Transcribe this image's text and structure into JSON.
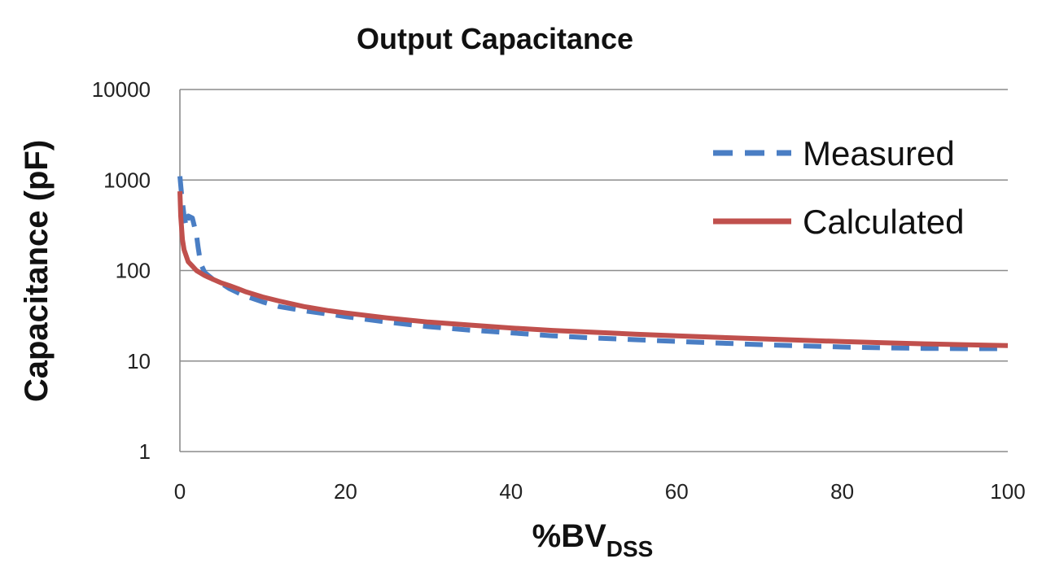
{
  "chart_data": {
    "type": "line",
    "title": "Output Capacitance",
    "xlabel": "%BV",
    "xlabel_subscript": "DSS",
    "ylabel": "Capacitance (pF)",
    "xlim": [
      0,
      100
    ],
    "ylim": [
      1,
      10000
    ],
    "yscale": "log",
    "grid": "horizontal",
    "legend_position": "top-right",
    "x_ticks": [
      "0",
      "20",
      "40",
      "60",
      "80",
      "100"
    ],
    "y_ticks": [
      "1",
      "10",
      "100",
      "1000",
      "10000"
    ],
    "series": [
      {
        "name": "Measured",
        "style": "dashed",
        "color": "#4a7ec4",
        "x": [
          0,
          0.2,
          0.5,
          0.8,
          1.0,
          1.5,
          2.0,
          2.2,
          2.5,
          3,
          4,
          5,
          6,
          7,
          8,
          10,
          12,
          15,
          18,
          20,
          25,
          30,
          35,
          40,
          45,
          50,
          55,
          60,
          65,
          70,
          75,
          80,
          85,
          90,
          95,
          100
        ],
        "y": [
          1100,
          700,
          400,
          300,
          400,
          380,
          250,
          180,
          120,
          95,
          80,
          72,
          63,
          57,
          52,
          45,
          40,
          36,
          33,
          31,
          27,
          24,
          22,
          20.5,
          19,
          18,
          17.2,
          16.5,
          15.8,
          15.2,
          14.7,
          14.3,
          14,
          13.8,
          13.7,
          13.7
        ]
      },
      {
        "name": "Calculated",
        "style": "solid",
        "color": "#c0504d",
        "x": [
          0,
          0.1,
          0.3,
          0.5,
          1.0,
          1.5,
          2.0,
          3,
          4,
          5,
          6,
          7,
          8,
          10,
          12,
          15,
          18,
          20,
          25,
          30,
          35,
          40,
          45,
          50,
          55,
          60,
          65,
          70,
          75,
          80,
          85,
          90,
          95,
          100
        ],
        "y": [
          750,
          400,
          220,
          170,
          125,
          112,
          100,
          88,
          80,
          73,
          68,
          63,
          58,
          51,
          46,
          40,
          36,
          34,
          30,
          27,
          25,
          23.2,
          21.8,
          20.8,
          19.8,
          19,
          18.3,
          17.6,
          17,
          16.4,
          15.9,
          15.5,
          15.1,
          14.8
        ]
      }
    ]
  }
}
